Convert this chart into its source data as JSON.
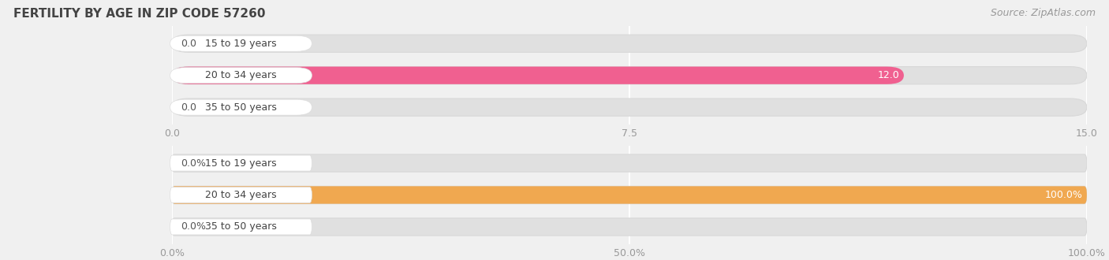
{
  "title": "FERTILITY BY AGE IN ZIP CODE 57260",
  "source": "Source: ZipAtlas.com",
  "top_chart": {
    "categories": [
      "15 to 19 years",
      "20 to 34 years",
      "35 to 50 years"
    ],
    "values": [
      0.0,
      12.0,
      0.0
    ],
    "xlim": [
      0,
      15
    ],
    "xticks": [
      0.0,
      7.5,
      15.0
    ],
    "xticklabels": [
      "0.0",
      "7.5",
      "15.0"
    ],
    "bar_color": "#F06090",
    "label_color_inside": "#ffffff",
    "label_color_outside": "#555555",
    "value_labels": [
      "0.0",
      "12.0",
      "0.0"
    ]
  },
  "bottom_chart": {
    "categories": [
      "15 to 19 years",
      "20 to 34 years",
      "35 to 50 years"
    ],
    "values": [
      0.0,
      100.0,
      0.0
    ],
    "xlim": [
      0,
      100
    ],
    "xticks": [
      0.0,
      50.0,
      100.0
    ],
    "xticklabels": [
      "0.0%",
      "50.0%",
      "100.0%"
    ],
    "bar_color": "#F0A850",
    "label_color_inside": "#ffffff",
    "label_color_outside": "#555555",
    "value_labels": [
      "0.0%",
      "100.0%",
      "0.0%"
    ]
  },
  "bg_color": "#f0f0f0",
  "bar_bg_color": "#e0e0e0",
  "bar_bg_edge_color": "#d8d8d8",
  "white_pill_color": "#ffffff",
  "grid_color": "#ffffff",
  "tick_color": "#999999",
  "title_color": "#444444",
  "cat_label_color": "#444444",
  "label_fontsize": 9,
  "tick_fontsize": 9,
  "title_fontsize": 11,
  "source_fontsize": 9,
  "cat_fontsize": 9
}
